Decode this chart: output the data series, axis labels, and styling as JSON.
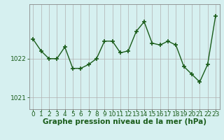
{
  "hours": [
    0,
    1,
    2,
    3,
    4,
    5,
    6,
    7,
    8,
    9,
    10,
    11,
    12,
    13,
    14,
    15,
    16,
    17,
    18,
    19,
    20,
    21,
    22,
    23
  ],
  "pressure": [
    1022.5,
    1022.2,
    1022.0,
    1022.0,
    1022.3,
    1021.75,
    1021.75,
    1021.85,
    1022.0,
    1022.45,
    1022.45,
    1022.15,
    1022.2,
    1022.7,
    1022.95,
    1022.4,
    1022.35,
    1022.45,
    1022.35,
    1021.8,
    1021.6,
    1021.4,
    1021.85,
    1023.1
  ],
  "line_color": "#1a5c1a",
  "marker_color": "#1a5c1a",
  "background_color": "#d6f0f0",
  "grid_color": "#b0b0b0",
  "ytick_labels": [
    "1021",
    "1022"
  ],
  "ytick_values": [
    1021,
    1022
  ],
  "ylim": [
    1020.7,
    1023.4
  ],
  "xlim": [
    -0.5,
    23.5
  ],
  "xlabel": "Graphe pression niveau de la mer (hPa)",
  "xlabel_fontsize": 7.5,
  "tick_fontsize": 6.5,
  "marker_size": 4,
  "line_width": 1.0
}
